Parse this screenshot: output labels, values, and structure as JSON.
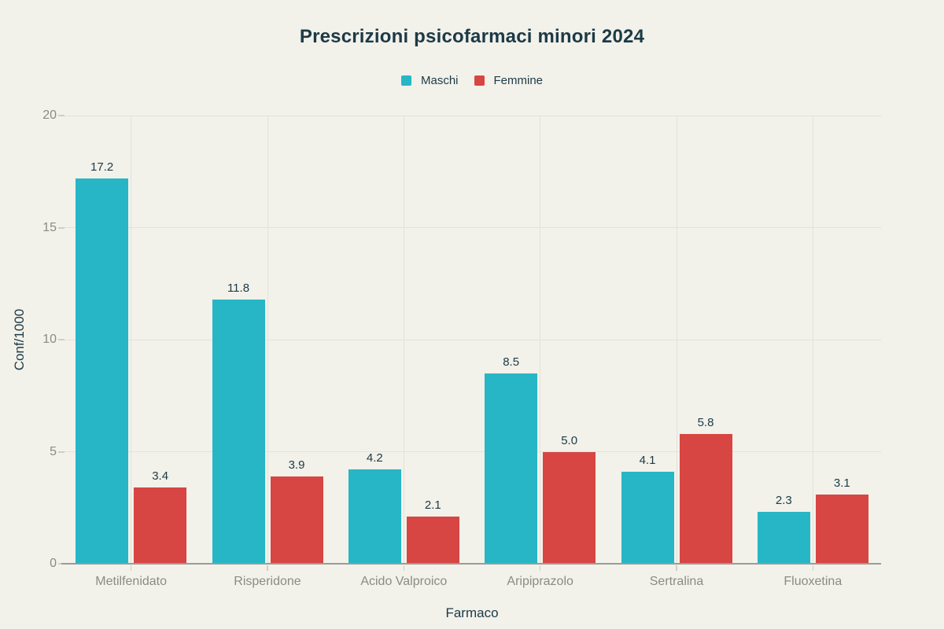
{
  "chart_data": {
    "type": "bar",
    "title": "Prescrizioni psicofarmaci minori 2024",
    "xlabel": "Farmaco",
    "ylabel": "Conf/1000",
    "categories": [
      "Metilfenidato",
      "Risperidone",
      "Acido Valproico",
      "Aripiprazolo",
      "Sertralina",
      "Fluoxetina"
    ],
    "series": [
      {
        "name": "Maschi",
        "color": "#26b6c5",
        "values": [
          17.2,
          11.8,
          4.2,
          8.5,
          4.1,
          2.3
        ]
      },
      {
        "name": "Femmine",
        "color": "#d74642",
        "values": [
          3.4,
          3.9,
          2.1,
          5.0,
          5.8,
          3.1
        ]
      }
    ],
    "ylim": [
      0,
      20
    ],
    "yticks": [
      0,
      5,
      10,
      15,
      20
    ],
    "grid": true,
    "legend_position": "top-center",
    "value_labels": true
  },
  "colors": {
    "background": "#f2f1ea",
    "title_text": "#1c3a46",
    "axis_title_text": "#1c3a46",
    "tick_label_text": "#8b8b86",
    "gridline": "#e4e3da",
    "axis_line": "#9c9c97",
    "tick_mark": "#cfcfc7",
    "maschi_bar": "#26b6c5",
    "femmine_bar": "#d74642"
  }
}
